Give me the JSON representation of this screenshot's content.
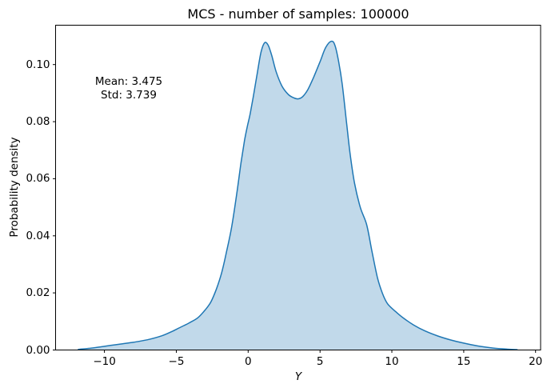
{
  "chart_data": {
    "type": "area",
    "title": "MCS - number of samples: 100000",
    "xlabel": "Y",
    "ylabel": "Probability density",
    "xlim": [
      -13.4,
      20.35
    ],
    "ylim": [
      0,
      0.1138
    ],
    "grid": false,
    "legend": null,
    "line_color": "#1f77b4",
    "fill_color": "rgba(31,119,180,0.28)",
    "axis_color": "#000000",
    "xticks": [
      -10,
      -5,
      0,
      5,
      10,
      15,
      20
    ],
    "xtick_labels": [
      "−10",
      "−5",
      "0",
      "5",
      "10",
      "15",
      "20"
    ],
    "yticks": [
      0.0,
      0.02,
      0.04,
      0.06,
      0.08,
      0.1
    ],
    "ytick_labels": [
      "0.00",
      "0.02",
      "0.04",
      "0.06",
      "0.08",
      "0.10"
    ],
    "annotation": {
      "line1": "Mean: 3.475",
      "line2": "Std: 3.739",
      "mean": 3.475,
      "std": 3.739
    },
    "series": [
      {
        "name": "kde-density",
        "points": [
          [
            -11.85,
            0.0002
          ],
          [
            -11.0,
            0.0006
          ],
          [
            -10.0,
            0.0013
          ],
          [
            -9.0,
            0.002
          ],
          [
            -8.0,
            0.0027
          ],
          [
            -7.0,
            0.0036
          ],
          [
            -6.0,
            0.005
          ],
          [
            -5.3,
            0.0065
          ],
          [
            -4.7,
            0.008
          ],
          [
            -4.1,
            0.0095
          ],
          [
            -3.5,
            0.0113
          ],
          [
            -3.0,
            0.014
          ],
          [
            -2.6,
            0.0168
          ],
          [
            -2.2,
            0.0215
          ],
          [
            -1.85,
            0.027
          ],
          [
            -1.5,
            0.0345
          ],
          [
            -1.15,
            0.043
          ],
          [
            -0.8,
            0.0545
          ],
          [
            -0.5,
            0.0655
          ],
          [
            -0.25,
            0.0735
          ],
          [
            -0.05,
            0.0785
          ],
          [
            0.15,
            0.083
          ],
          [
            0.4,
            0.09
          ],
          [
            0.65,
            0.0975
          ],
          [
            0.9,
            0.1045
          ],
          [
            1.15,
            0.1077
          ],
          [
            1.4,
            0.1067
          ],
          [
            1.65,
            0.103
          ],
          [
            1.95,
            0.0975
          ],
          [
            2.35,
            0.0925
          ],
          [
            2.8,
            0.0895
          ],
          [
            3.2,
            0.0883
          ],
          [
            3.5,
            0.088
          ],
          [
            3.8,
            0.0888
          ],
          [
            4.15,
            0.0912
          ],
          [
            4.55,
            0.0955
          ],
          [
            5.0,
            0.101
          ],
          [
            5.4,
            0.106
          ],
          [
            5.8,
            0.1082
          ],
          [
            6.05,
            0.1066
          ],
          [
            6.3,
            0.101
          ],
          [
            6.55,
            0.093
          ],
          [
            6.84,
            0.08
          ],
          [
            7.1,
            0.0685
          ],
          [
            7.4,
            0.0585
          ],
          [
            7.8,
            0.05
          ],
          [
            8.24,
            0.044
          ],
          [
            8.6,
            0.035
          ],
          [
            9.0,
            0.0253
          ],
          [
            9.35,
            0.0198
          ],
          [
            9.7,
            0.0162
          ],
          [
            10.3,
            0.0133
          ],
          [
            10.8,
            0.0112
          ],
          [
            11.5,
            0.0088
          ],
          [
            12.3,
            0.0067
          ],
          [
            13.2,
            0.0049
          ],
          [
            14.1,
            0.0035
          ],
          [
            15.0,
            0.0024
          ],
          [
            16.0,
            0.0014
          ],
          [
            17.0,
            0.0007
          ],
          [
            18.0,
            0.0003
          ],
          [
            18.75,
            0.0001
          ]
        ]
      }
    ]
  }
}
